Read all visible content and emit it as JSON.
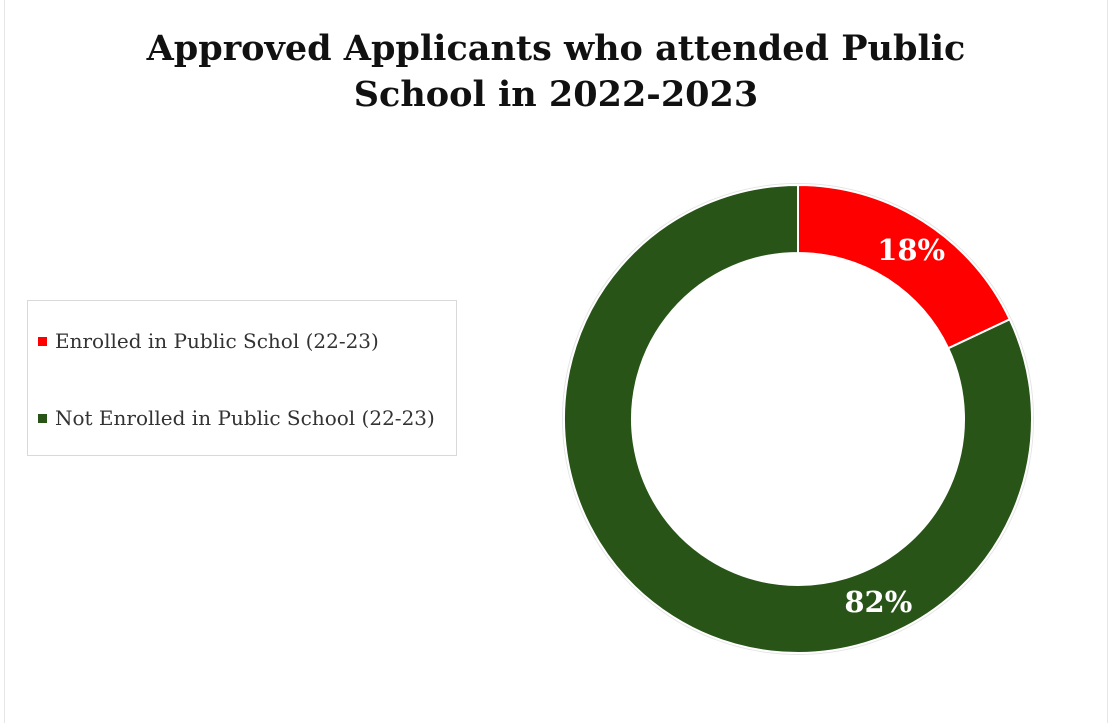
{
  "chart_data": {
    "type": "pie",
    "variant": "donut",
    "title_lines": [
      "Approved Applicants who attended Public",
      "School in 2022-2023"
    ],
    "legend_placement": "left",
    "slices": [
      {
        "name": "Enrolled in Public Schol (22-23)",
        "value": 18,
        "label": "18%",
        "color": "#ff0000"
      },
      {
        "name": "Not Enrolled in Public School (22-23)",
        "value": 82,
        "label": "82%",
        "color": "#285418"
      }
    ]
  }
}
